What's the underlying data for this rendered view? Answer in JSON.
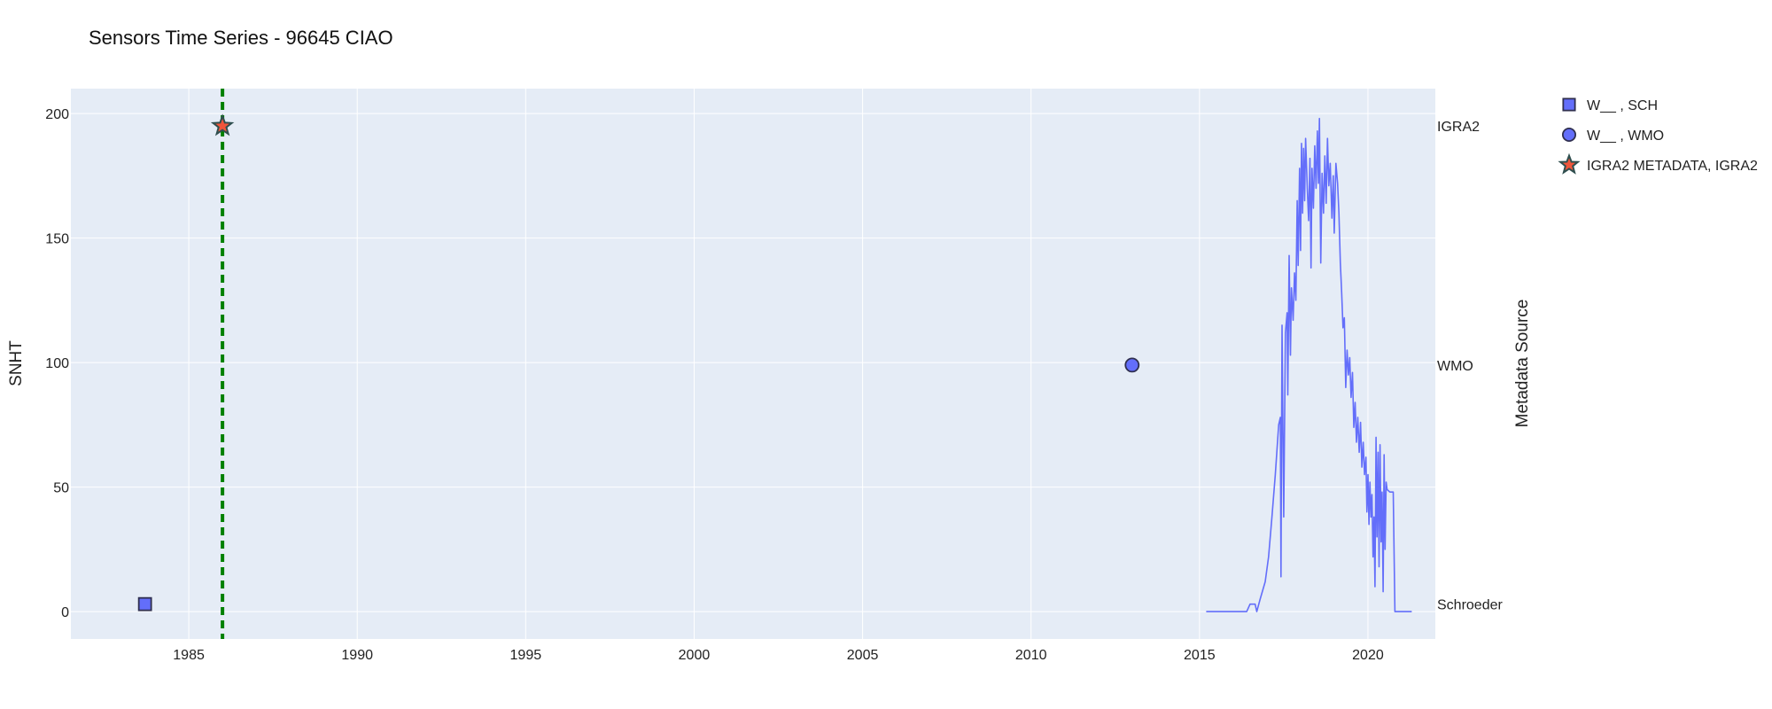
{
  "chart_data": {
    "type": "line",
    "title": "Sensors Time Series - 96645 CIAO",
    "xlabel": "",
    "ylabel": "SNHT",
    "y2label": "Metadata Source",
    "xlim": [
      1981.5,
      2022.0
    ],
    "ylim": [
      -11,
      210
    ],
    "x_ticks": [
      1985,
      1990,
      1995,
      2000,
      2005,
      2010,
      2015,
      2020
    ],
    "y_ticks": [
      0,
      50,
      100,
      150,
      200
    ],
    "y2_ticks": [
      {
        "label": "Schroeder",
        "y": 3
      },
      {
        "label": "WMO",
        "y": 99
      },
      {
        "label": "IGRA2",
        "y": 195
      }
    ],
    "grid": true,
    "legend_position": "right",
    "colors": {
      "plot_bg": "#e5ecf6",
      "series": "#636efa",
      "vline": "#008000",
      "star_fill": "#ef553b",
      "star_edge": "#2f4f4f",
      "marker_edge": "#2f2f4f"
    },
    "vline": {
      "x": 1986.0,
      "style": "dashed"
    },
    "series": [
      {
        "type": "line",
        "values": [
          [
            2015.2,
            0
          ],
          [
            2016.4,
            0
          ],
          [
            2016.5,
            3
          ],
          [
            2016.65,
            3
          ],
          [
            2016.7,
            0
          ],
          [
            2016.8,
            5
          ],
          [
            2016.95,
            12
          ],
          [
            2017.05,
            22
          ],
          [
            2017.15,
            38
          ],
          [
            2017.25,
            55
          ],
          [
            2017.3,
            65
          ],
          [
            2017.35,
            75
          ],
          [
            2017.4,
            78
          ],
          [
            2017.42,
            14
          ],
          [
            2017.45,
            115
          ],
          [
            2017.5,
            38
          ],
          [
            2017.55,
            112
          ],
          [
            2017.6,
            120
          ],
          [
            2017.62,
            87
          ],
          [
            2017.66,
            143
          ],
          [
            2017.7,
            103
          ],
          [
            2017.73,
            130
          ],
          [
            2017.78,
            117
          ],
          [
            2017.82,
            136
          ],
          [
            2017.86,
            125
          ],
          [
            2017.9,
            165
          ],
          [
            2017.93,
            139
          ],
          [
            2017.97,
            178
          ],
          [
            2018.0,
            145
          ],
          [
            2018.03,
            188
          ],
          [
            2018.06,
            160
          ],
          [
            2018.09,
            186
          ],
          [
            2018.12,
            165
          ],
          [
            2018.15,
            190
          ],
          [
            2018.2,
            170
          ],
          [
            2018.24,
            157
          ],
          [
            2018.28,
            182
          ],
          [
            2018.31,
            138
          ],
          [
            2018.34,
            178
          ],
          [
            2018.38,
            162
          ],
          [
            2018.42,
            187
          ],
          [
            2018.46,
            170
          ],
          [
            2018.5,
            193
          ],
          [
            2018.53,
            172
          ],
          [
            2018.56,
            198
          ],
          [
            2018.6,
            140
          ],
          [
            2018.64,
            176
          ],
          [
            2018.68,
            160
          ],
          [
            2018.72,
            183
          ],
          [
            2018.76,
            164
          ],
          [
            2018.8,
            190
          ],
          [
            2018.84,
            171
          ],
          [
            2018.88,
            180
          ],
          [
            2018.93,
            158
          ],
          [
            2018.97,
            175
          ],
          [
            2019.0,
            152
          ],
          [
            2019.05,
            180
          ],
          [
            2019.1,
            172
          ],
          [
            2019.14,
            160
          ],
          [
            2019.18,
            140
          ],
          [
            2019.22,
            128
          ],
          [
            2019.26,
            114
          ],
          [
            2019.3,
            118
          ],
          [
            2019.34,
            90
          ],
          [
            2019.38,
            105
          ],
          [
            2019.42,
            95
          ],
          [
            2019.46,
            102
          ],
          [
            2019.5,
            86
          ],
          [
            2019.54,
            96
          ],
          [
            2019.58,
            74
          ],
          [
            2019.62,
            84
          ],
          [
            2019.66,
            68
          ],
          [
            2019.7,
            78
          ],
          [
            2019.74,
            64
          ],
          [
            2019.78,
            76
          ],
          [
            2019.82,
            58
          ],
          [
            2019.86,
            68
          ],
          [
            2019.9,
            55
          ],
          [
            2019.94,
            62
          ],
          [
            2019.97,
            40
          ],
          [
            2020.0,
            55
          ],
          [
            2020.03,
            35
          ],
          [
            2020.06,
            52
          ],
          [
            2020.09,
            38
          ],
          [
            2020.12,
            47
          ],
          [
            2020.15,
            22
          ],
          [
            2020.18,
            38
          ],
          [
            2020.21,
            10
          ],
          [
            2020.24,
            70
          ],
          [
            2020.27,
            30
          ],
          [
            2020.3,
            64
          ],
          [
            2020.33,
            18
          ],
          [
            2020.36,
            67
          ],
          [
            2020.39,
            28
          ],
          [
            2020.42,
            48
          ],
          [
            2020.45,
            8
          ],
          [
            2020.48,
            63
          ],
          [
            2020.51,
            25
          ],
          [
            2020.54,
            52
          ],
          [
            2020.57,
            49
          ],
          [
            2020.65,
            48
          ],
          [
            2020.75,
            48
          ],
          [
            2020.8,
            0
          ],
          [
            2021.3,
            0
          ]
        ]
      },
      {
        "name": "W__ , SCH",
        "type": "marker",
        "symbol": "square",
        "x": 1983.7,
        "y": 3
      },
      {
        "name": "W__ , WMO",
        "type": "marker",
        "symbol": "circle",
        "x": 2013.0,
        "y": 99
      },
      {
        "name": "IGRA2 METADATA, IGRA2",
        "type": "marker",
        "symbol": "star",
        "x": 1986.0,
        "y": 195
      }
    ]
  }
}
